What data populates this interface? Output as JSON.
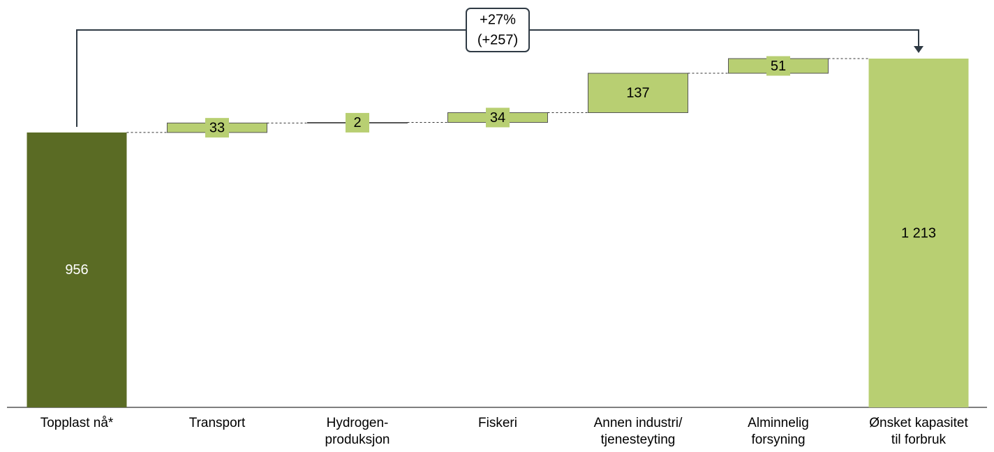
{
  "chart_data": {
    "type": "waterfall",
    "categories": [
      "Topplast nå*",
      "Transport",
      "Hydrogen-\nproduksjon",
      "Fiskeri",
      "Annen industri/\ntjenesteyting",
      "Alminnelig\nforsyning",
      "Ønsket kapasitet\ntil forbruk"
    ],
    "values": [
      956,
      33,
      2,
      34,
      137,
      51,
      1213
    ],
    "value_labels": [
      "956",
      "33",
      "2",
      "34",
      "137",
      "51",
      "1 213"
    ],
    "is_total": [
      true,
      false,
      false,
      false,
      false,
      false,
      true
    ],
    "colors": [
      "#5a6b24",
      "#b8cf72",
      "#b8cf72",
      "#b8cf72",
      "#b8cf72",
      "#b8cf72",
      "#b8cf72"
    ],
    "ylim": [
      0,
      1213
    ],
    "annotation": [
      "+27%",
      "(+257)"
    ]
  }
}
